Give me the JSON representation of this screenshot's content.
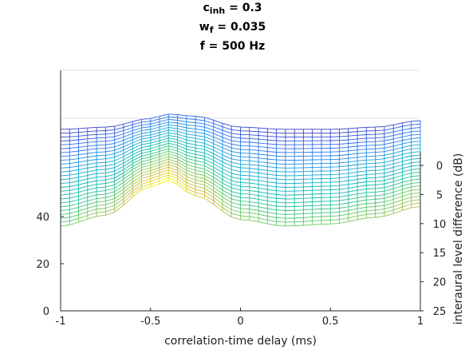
{
  "title": {
    "line1_main": "c",
    "line1_sub": "inh",
    "line1_rest": " = 0.3",
    "line2_main": "w",
    "line2_sub": "f",
    "line2_rest": " = 0.035",
    "line3": "f = 500 Hz"
  },
  "chart_data": {
    "type": "surface-mesh",
    "xlabel": "correlation-time delay (ms)",
    "ylabel": "interaural level difference (dB)",
    "zlabel": "",
    "xlim": [
      -1,
      1
    ],
    "ylim": [
      0,
      25
    ],
    "zlim": [
      0,
      60
    ],
    "x_ticks": [
      -1,
      -0.5,
      0,
      0.5,
      1
    ],
    "x_tick_labels": [
      "-1",
      "-0.5",
      "0",
      "0.5",
      "1"
    ],
    "y_ticks": [
      0,
      5,
      10,
      15,
      20,
      25
    ],
    "y_tick_labels": [
      "0",
      "5",
      "10",
      "15",
      "20",
      "25"
    ],
    "z_ticks": [
      0,
      20,
      40
    ],
    "z_tick_labels": [
      "0",
      "20",
      "40"
    ],
    "grid_columns": 41,
    "grid_rows": 26,
    "colormap": [
      "#3e26a8",
      "#2f6ff5",
      "#1aa7da",
      "#12bea7",
      "#72c95e",
      "#d2bc3c",
      "#f9fb0e"
    ],
    "surface_samples": {
      "x": [
        -1,
        -0.75,
        -0.5,
        -0.4,
        -0.25,
        0,
        0.25,
        0.5,
        0.75,
        1
      ],
      "z_at_ild_0": [
        3,
        4,
        8,
        10,
        9,
        4,
        3,
        3,
        4,
        7
      ],
      "z_at_ild_25": [
        39,
        44,
        57,
        60,
        53,
        42,
        39,
        40,
        43,
        48
      ]
    },
    "grid": false,
    "legend": "none"
  }
}
